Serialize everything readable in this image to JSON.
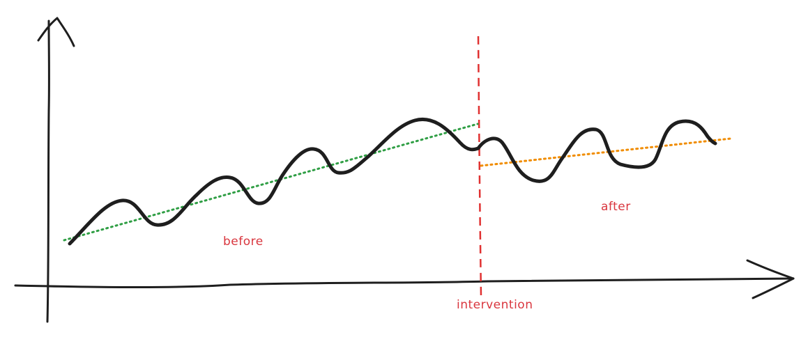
{
  "labels": {
    "before": "before",
    "after": "after",
    "intervention": "intervention"
  },
  "colors": {
    "ink": "#1e1e1e",
    "intervention_line": "#e03131",
    "label_text": "#d9363e",
    "trend_before": "#2f9e44",
    "trend_after": "#f08c00"
  }
}
